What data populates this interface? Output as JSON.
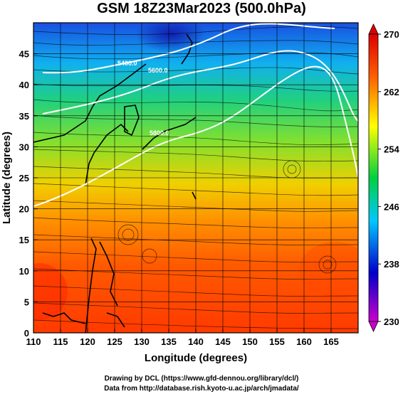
{
  "title": "GSM 18Z23Mar2023 (500.0hPa)",
  "axes": {
    "xlabel": "Longitude (degrees)",
    "ylabel": "Latitude (degrees)",
    "xrange": [
      110,
      170
    ],
    "yrange": [
      0,
      50
    ],
    "xticks": [
      "110",
      "115",
      "120",
      "125",
      "130",
      "135",
      "140",
      "145",
      "150",
      "155",
      "160",
      "165"
    ],
    "yticks": [
      "0",
      "5",
      "10",
      "15",
      "20",
      "25",
      "30",
      "35",
      "40",
      "45"
    ],
    "grid": "on"
  },
  "colorbar": {
    "ticks": [
      "270",
      "262",
      "254",
      "246",
      "238",
      "230"
    ],
    "min": 230,
    "max": 270,
    "colors": [
      "#cc00cc",
      "#0000cc",
      "#00c8ff",
      "#00d040",
      "#ffff00",
      "#ff6000",
      "#dd0000"
    ]
  },
  "contour_labels": [
    "5400.0",
    "5600.0",
    "5800.0"
  ],
  "footer": {
    "line1": "Drawing by DCL (https://www.gfd-dennou.org/library/dcl/)",
    "line2": "Data from http://database.rish.kyoto-u.ac.jp/arch/jmadata/"
  }
}
